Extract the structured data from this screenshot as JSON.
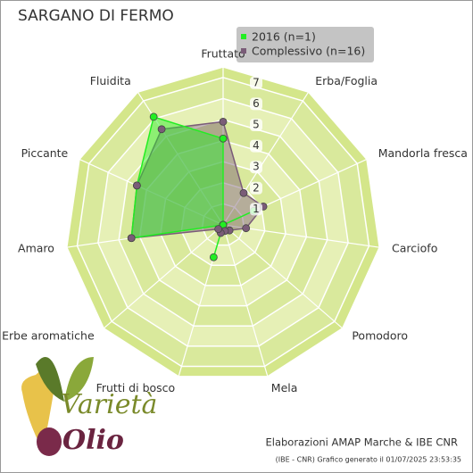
{
  "chart_data": {
    "type": "radar",
    "title": "SARGANO DI FERMO",
    "categories": [
      "Fruttato",
      "Erba/Foglia",
      "Mandorla fresca",
      "Carciofo",
      "Pomodoro",
      "Mela",
      "Frutti di bosco",
      "Erbe aromatiche",
      "Amaro",
      "Piccante",
      "Fluidita"
    ],
    "series": [
      {
        "name": "2016 (n=1)",
        "color": "#22ee22",
        "values": [
          4.1,
          0,
          1.6,
          0,
          0,
          0,
          1.6,
          0,
          4.4,
          4.5,
          6.1
        ]
      },
      {
        "name": "Complessivo (n=16)",
        "color": "#7a5c78",
        "values": [
          4.9,
          1.8,
          2.1,
          1.1,
          0.4,
          0.3,
          0.4,
          0.3,
          4.4,
          4.5,
          5.4
        ]
      }
    ],
    "rlim": [
      0,
      7.5
    ],
    "rticks": [
      1,
      2,
      3,
      4,
      5,
      6,
      7
    ],
    "footer": "Elaborazioni AMAP Marche & IBE CNR",
    "footnote": "(IBE - CNR) Grafico generato il 01/07/2025 23:53:35",
    "logo": {
      "word1": "Varietà",
      "word2": "Olio"
    }
  }
}
